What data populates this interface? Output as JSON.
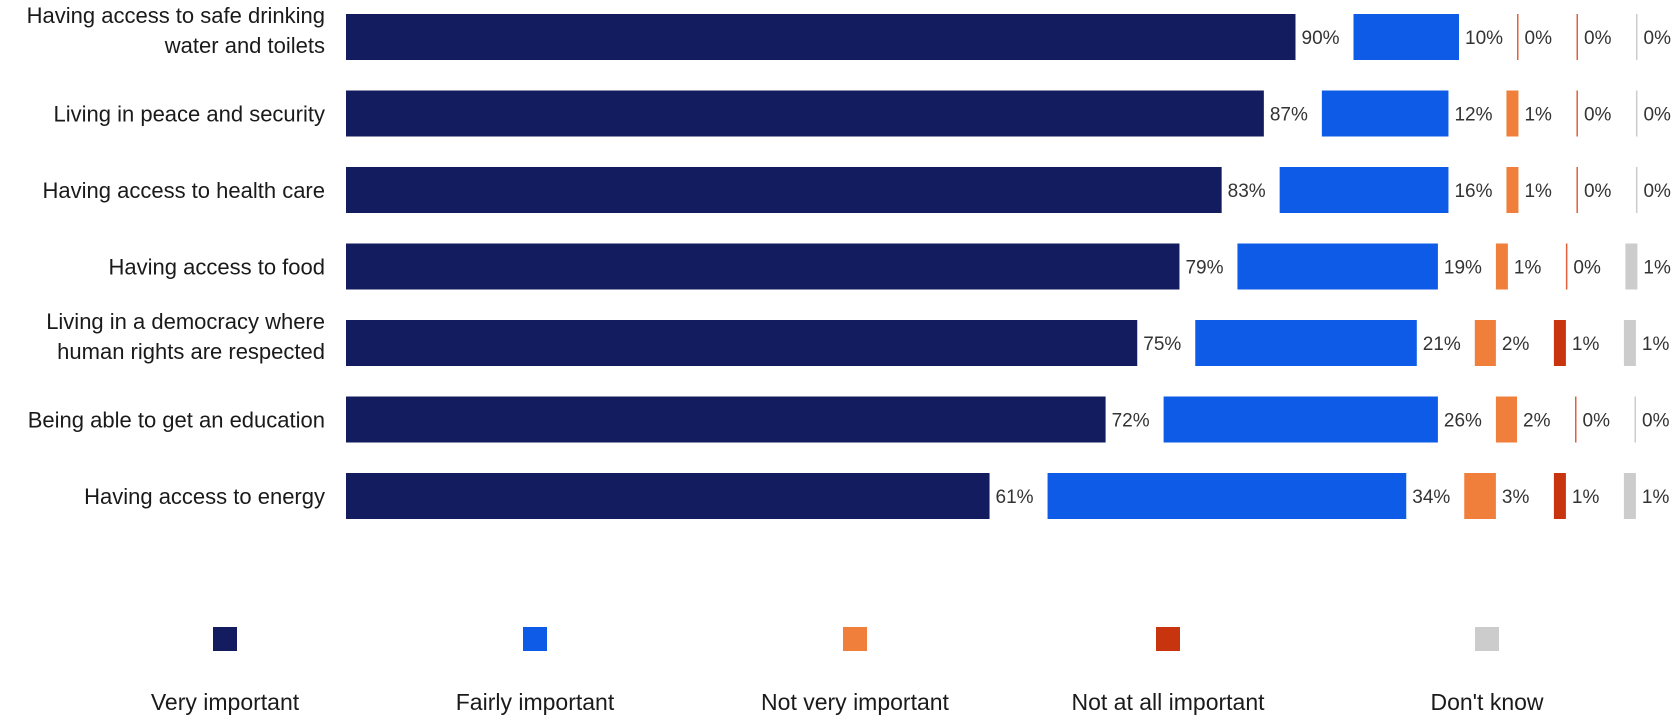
{
  "chart_data": {
    "type": "bar",
    "stacked": true,
    "orientation": "horizontal",
    "categories": [
      [
        "Having access to safe drinking",
        "water and toilets"
      ],
      [
        "Living in peace and security"
      ],
      [
        "Having access to health care"
      ],
      [
        "Having access to food"
      ],
      [
        "Living in a democracy where",
        "human rights are respected"
      ],
      [
        "Being able to get an education"
      ],
      [
        "Having access to energy"
      ]
    ],
    "series": [
      {
        "name": "Very important",
        "color": "#131c5f",
        "values": [
          90,
          87,
          83,
          79,
          75,
          72,
          61
        ]
      },
      {
        "name": "Fairly important",
        "color": "#0d5be6",
        "values": [
          10,
          12,
          16,
          19,
          21,
          26,
          34
        ]
      },
      {
        "name": "Not very important",
        "color": "#f07f3c",
        "values": [
          0,
          1,
          1,
          1,
          2,
          2,
          3
        ]
      },
      {
        "name": "Not at all important",
        "color": "#c8340e",
        "values": [
          0,
          0,
          0,
          0,
          1,
          0,
          1
        ]
      },
      {
        "name": "Don't know",
        "color": "#cccccc",
        "values": [
          0,
          0,
          0,
          1,
          1,
          0,
          1
        ]
      }
    ],
    "value_suffix": "%",
    "legend_position": "bottom"
  }
}
